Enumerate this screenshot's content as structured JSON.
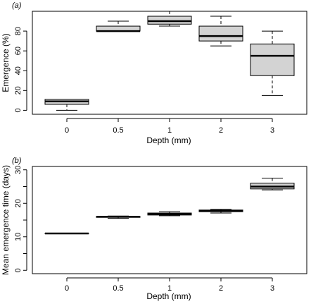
{
  "chart_data": [
    {
      "type": "boxplot",
      "panel_label": "(a)",
      "xlabel": "Depth (mm)",
      "ylabel": "Emergence (%)",
      "categories": [
        "0",
        "0.5",
        "1",
        "2",
        "3"
      ],
      "ylim": [
        -4,
        100
      ],
      "yticks": [
        0,
        20,
        40,
        60,
        80
      ],
      "boxes": [
        {
          "category": "0",
          "whisker_low": 0,
          "q1": 6,
          "median": 9,
          "q3": 11,
          "whisker_high": 11
        },
        {
          "category": "0.5",
          "whisker_low": 80,
          "q1": 80,
          "median": 80,
          "q3": 85,
          "whisker_high": 90
        },
        {
          "category": "1",
          "whisker_low": 85,
          "q1": 87,
          "median": 90,
          "q3": 95,
          "whisker_high": 100
        },
        {
          "category": "2",
          "whisker_low": 65,
          "q1": 70,
          "median": 75,
          "q3": 85,
          "whisker_high": 95
        },
        {
          "category": "3",
          "whisker_low": 15,
          "q1": 35,
          "median": 55,
          "q3": 67,
          "whisker_high": 80
        }
      ],
      "box_color": "#d3d3d3",
      "grid": false
    },
    {
      "type": "boxplot",
      "panel_label": "(b)",
      "xlabel": "Depth (mm)",
      "ylabel": "Mean emergence time (days)",
      "categories": [
        "0",
        "0.5",
        "1",
        "2",
        "3"
      ],
      "ylim": [
        -1,
        31
      ],
      "yticks": [
        0,
        5,
        10,
        15,
        20,
        25,
        30
      ],
      "ytick_labels": [
        "0",
        "",
        "10",
        "",
        "20",
        "",
        "30"
      ],
      "boxes": [
        {
          "category": "0",
          "whisker_low": 11,
          "q1": 11,
          "median": 11,
          "q3": 11,
          "whisker_high": 11
        },
        {
          "category": "0.5",
          "whisker_low": 15.5,
          "q1": 15.8,
          "median": 16,
          "q3": 16.1,
          "whisker_high": 16.2
        },
        {
          "category": "1",
          "whisker_low": 16.3,
          "q1": 16.5,
          "median": 16.8,
          "q3": 17.1,
          "whisker_high": 17.5
        },
        {
          "category": "2",
          "whisker_low": 17.1,
          "q1": 17.5,
          "median": 17.8,
          "q3": 18.0,
          "whisker_high": 18.2
        },
        {
          "category": "3",
          "whisker_low": 24.0,
          "q1": 24.3,
          "median": 25.0,
          "q3": 26.0,
          "whisker_high": 27.5
        }
      ],
      "box_color": "#d3d3d3",
      "grid": false
    }
  ]
}
